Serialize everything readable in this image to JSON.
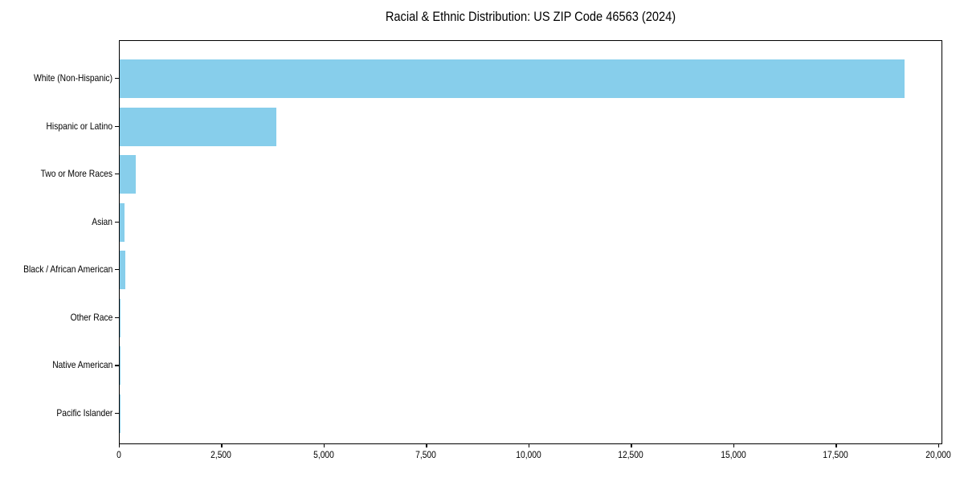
{
  "chart_data": {
    "type": "bar",
    "orientation": "horizontal",
    "title": "Racial & Ethnic Distribution: US ZIP Code 46563 (2024)",
    "categories": [
      "White (Non-Hispanic)",
      "Hispanic or Latino",
      "Two or More Races",
      "Asian",
      "Black / African American",
      "Other Race",
      "Native American",
      "Pacific Islander"
    ],
    "values": [
      19150,
      3830,
      390,
      125,
      140,
      25,
      15,
      5
    ],
    "xlabel": "",
    "ylabel": "",
    "xlim": [
      0,
      20100
    ],
    "xtick_values": [
      0,
      2500,
      5000,
      7500,
      10000,
      12500,
      15000,
      17500,
      20000
    ],
    "xtick_labels": [
      "0",
      "2,500",
      "5,000",
      "7,500",
      "10,000",
      "12,500",
      "15,000",
      "17,500",
      "20,000"
    ],
    "bar_color": "#87CEEB",
    "axis_color": "#000000",
    "background": "#FFFFFF",
    "grid": false,
    "legend": "none"
  }
}
